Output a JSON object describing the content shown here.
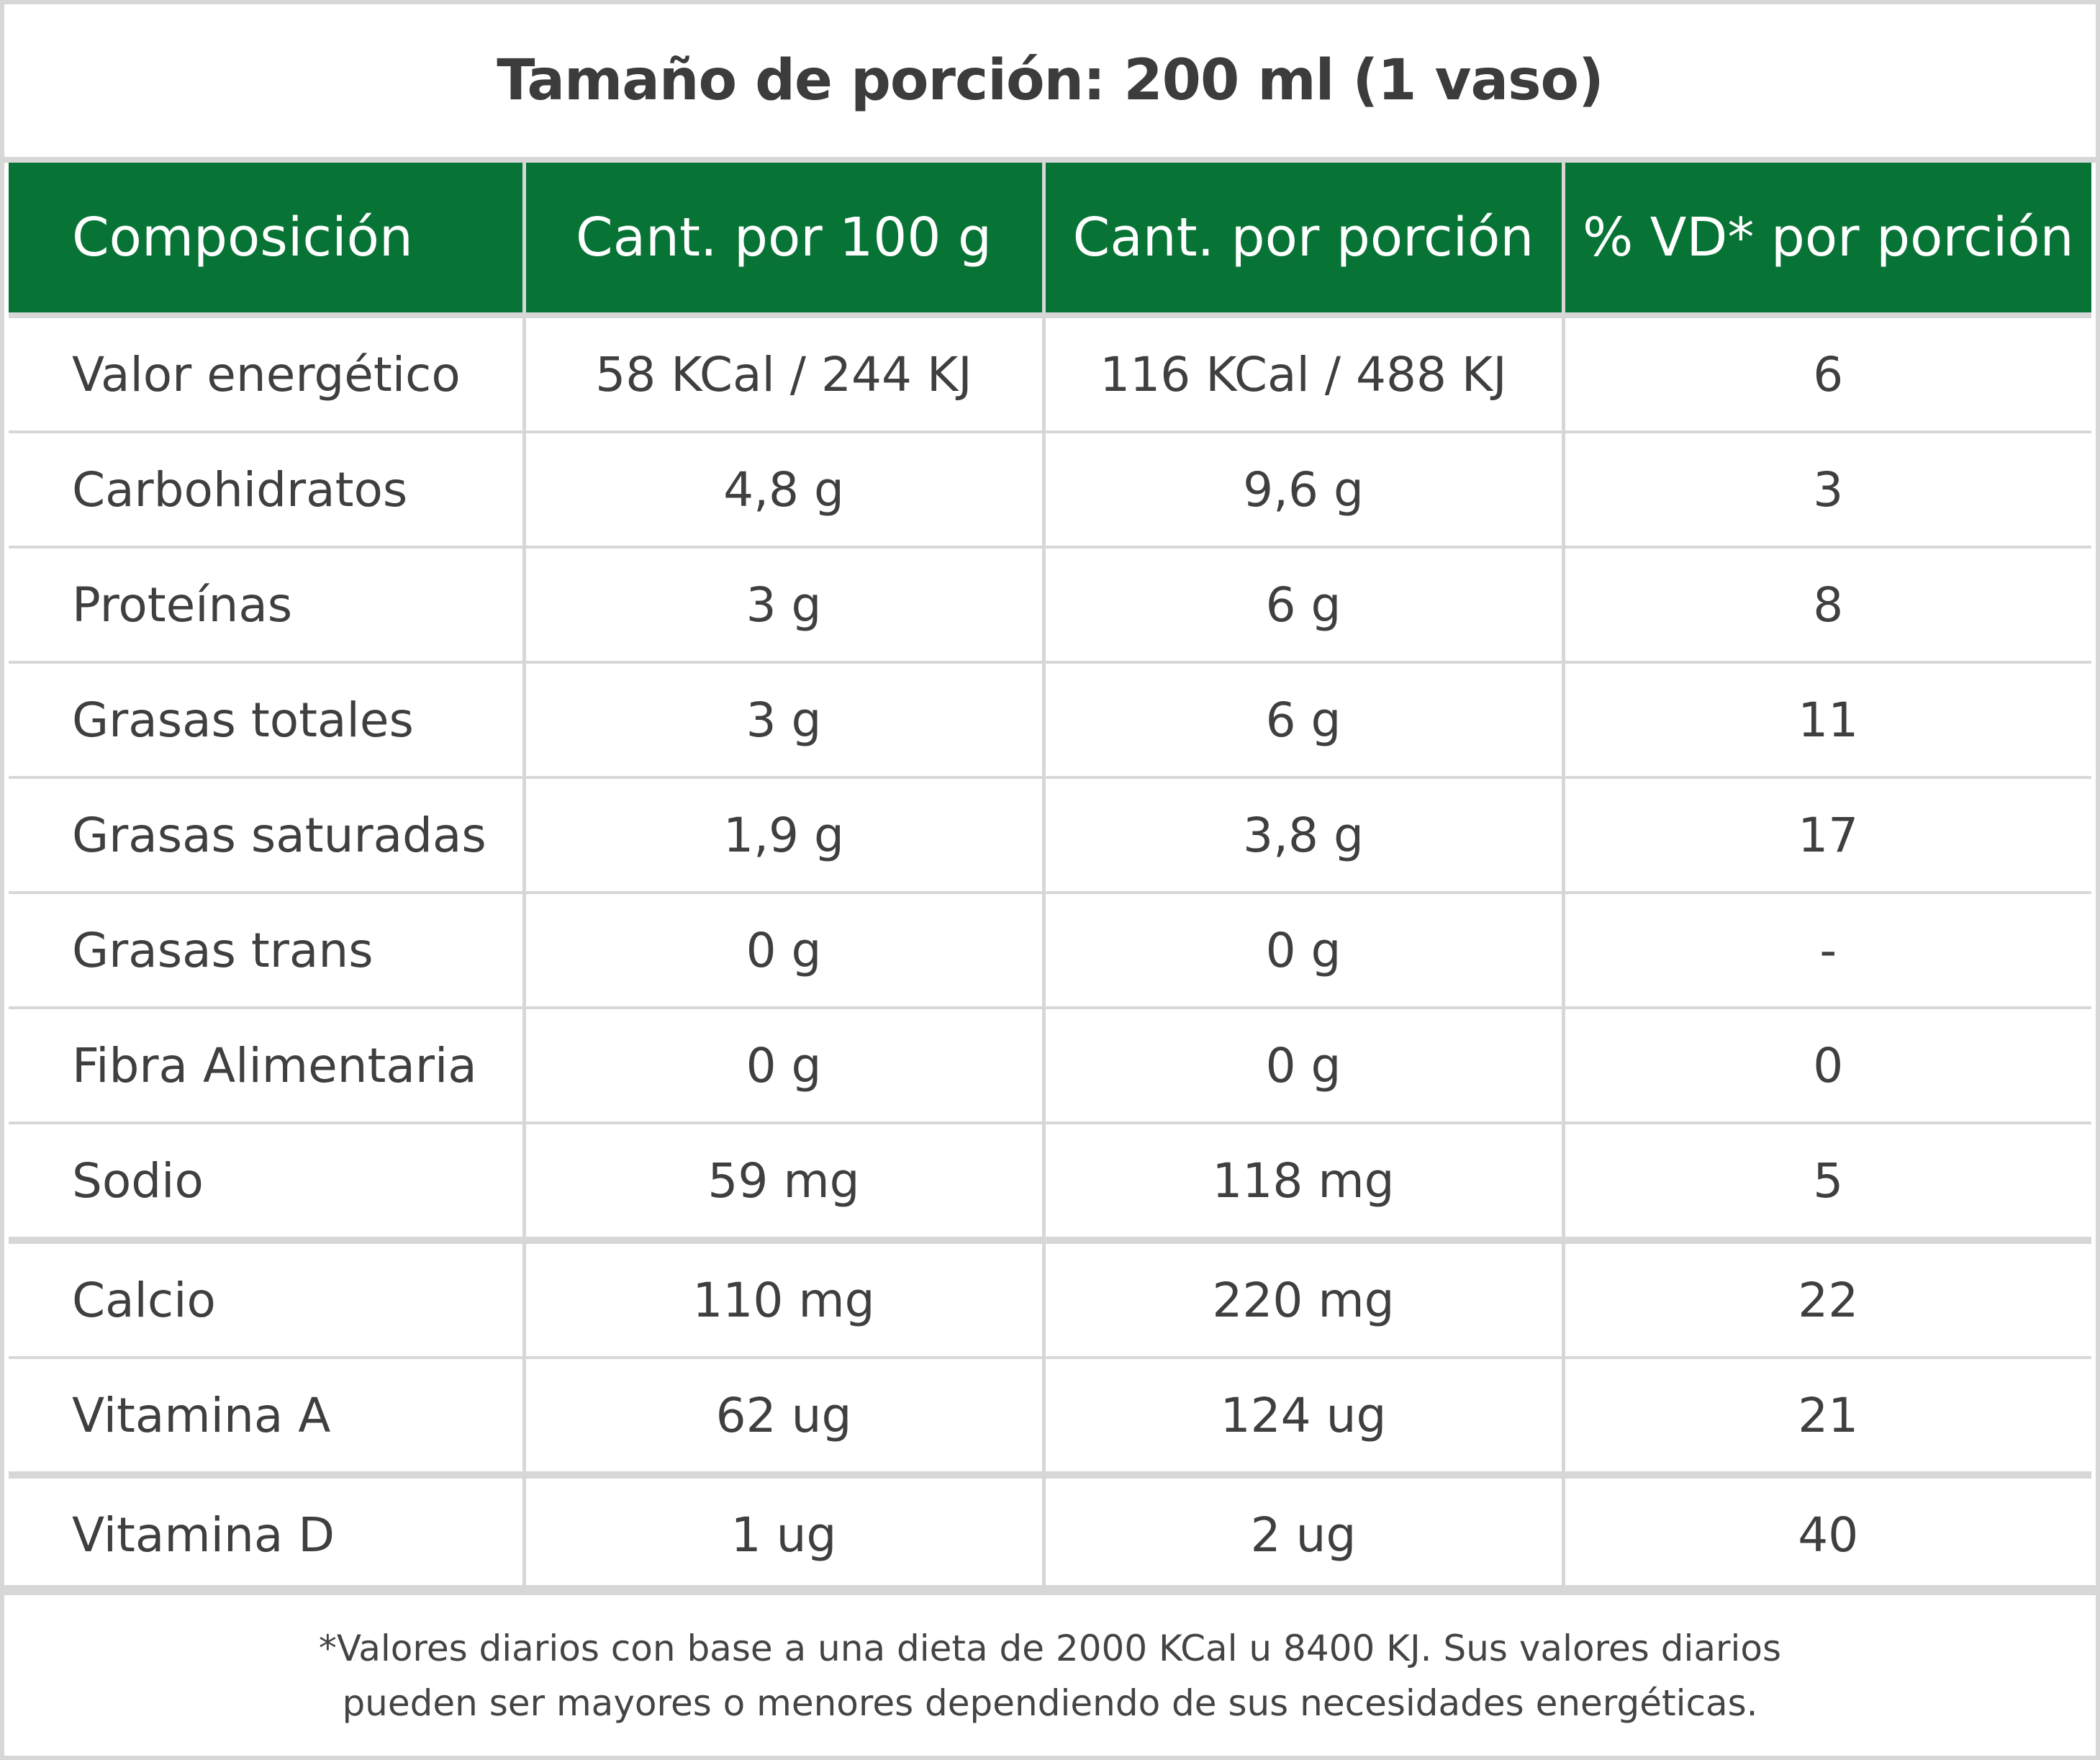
{
  "title": "Tamaño de porción: 200 ml (1 vaso)",
  "table": {
    "headers": [
      "Composición",
      "Cant. por 100 g",
      "Cant. por porción",
      "% VD* por porción"
    ],
    "rows": [
      [
        "Valor energético",
        "58 KCal / 244 KJ",
        "116 KCal / 488 KJ",
        "6"
      ],
      [
        "Carbohidratos",
        "4,8 g",
        "9,6 g",
        "3"
      ],
      [
        "Proteínas",
        "3 g",
        "6 g",
        "8"
      ],
      [
        "Grasas totales",
        "3 g",
        "6 g",
        "11"
      ],
      [
        "Grasas saturadas",
        "1,9 g",
        "3,8 g",
        "17"
      ],
      [
        "Grasas trans",
        "0 g",
        "0 g",
        "-"
      ],
      [
        "Fibra Alimentaria",
        "0 g",
        "0 g",
        "0"
      ],
      [
        "Sodio",
        "59 mg",
        "118 mg",
        "5"
      ],
      [
        "Calcio",
        "110 mg",
        "220 mg",
        "22"
      ],
      [
        "Vitamina A",
        "62 ug",
        "124 ug",
        "21"
      ],
      [
        "Vitamina D",
        "1 ug",
        "2 ug",
        "40"
      ]
    ]
  },
  "footnote": {
    "line1": "*Valores diarios con base a una dieta de 2000 KCal u 8400 KJ. Sus valores diarios",
    "line2": "pueden ser mayores o menores dependiendo de sus necesidades energéticas."
  },
  "colors": {
    "header_green": "#077335",
    "border_gray": "#d7d7d7",
    "text": "#3f3f3f"
  }
}
